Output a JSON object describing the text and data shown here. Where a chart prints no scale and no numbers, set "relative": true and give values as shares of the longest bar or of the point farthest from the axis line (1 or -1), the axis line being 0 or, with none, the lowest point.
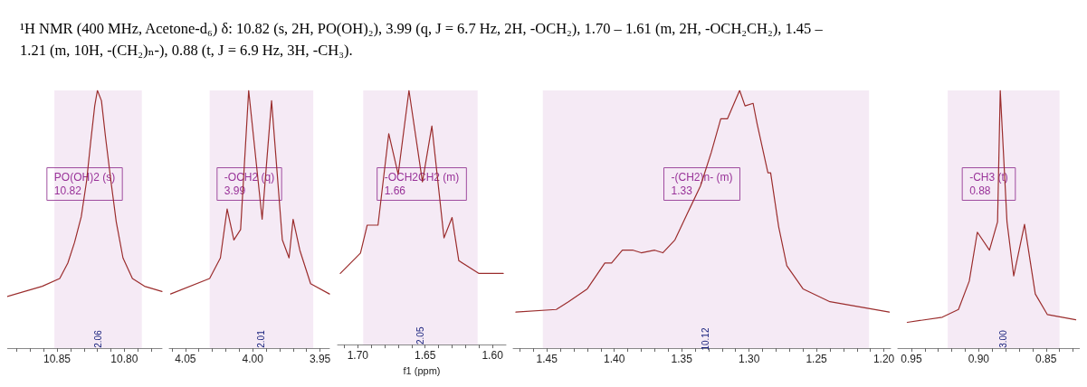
{
  "chart_data": [
    {
      "type": "line",
      "title": "¹H NMR (400 MHz, Acetone-d₆) δ: 10.82 (s, 2H, PO(OH)₂), 3.99 (q, J = 6.7 Hz, 2H, -OCH₂), 1.70 – 1.61 (m, 2H, -OCH₂CH₂), 1.45 – 1.21 (m, 10H, -(CH₂)ₙ-), 0.88 (t, J = 6.9 Hz, 3H, -CH₃).",
      "relative": true,
      "marker": "none",
      "color": "#9b2d2d",
      "xlim": [
        10.887,
        10.772
      ],
      "xticks": [
        {
          "value": 10.88,
          "label": null
        },
        {
          "value": 10.87,
          "label": null
        },
        {
          "value": 10.86,
          "label": null
        },
        10.85,
        {
          "value": 10.84,
          "label": null
        },
        {
          "value": 10.83,
          "label": null
        },
        {
          "value": 10.82,
          "label": null
        },
        {
          "value": 10.81,
          "label": null
        },
        {
          "value": 10.8,
          "label": "10.80"
        },
        {
          "value": 10.79,
          "label": null
        },
        {
          "value": 10.78,
          "label": null
        }
      ],
      "x": [
        10.887,
        10.861,
        10.848,
        10.842,
        10.837,
        10.832,
        10.828,
        10.825,
        10.822,
        10.82,
        10.817,
        10.814,
        10.81,
        10.806,
        10.801,
        10.794,
        10.785,
        10.772
      ],
      "values": [
        0.2,
        0.24,
        0.27,
        0.33,
        0.41,
        0.51,
        0.65,
        0.8,
        0.94,
        1,
        0.96,
        0.82,
        0.65,
        0.49,
        0.35,
        0.27,
        0.24,
        0.22
      ],
      "annotations": [
        "PO(OH)2 (s)\n10.82"
      ],
      "bands": [
        {
          "axis": "x",
          "from": 10.852,
          "to": 10.787,
          "label": "2.06",
          "color": "#993399"
        }
      ]
    },
    {
      "type": "line",
      "relative": true,
      "marker": "none",
      "color": "#9b2d2d",
      "xlim": [
        4.062,
        3.943
      ],
      "xticks": [
        {
          "value": 4.06,
          "label": null
        },
        4.05,
        {
          "value": 4.04,
          "label": null
        },
        {
          "value": 4.03,
          "label": null
        },
        {
          "value": 4.02,
          "label": null
        },
        {
          "value": 4.01,
          "label": null
        },
        {
          "value": 4,
          "label": "4.00"
        },
        {
          "value": 3.99,
          "label": null
        },
        {
          "value": 3.98,
          "label": null
        },
        {
          "value": 3.97,
          "label": null
        },
        {
          "value": 3.96,
          "label": null
        },
        3.95
      ],
      "x": [
        4.061,
        4.032,
        4.024,
        4.019,
        4.014,
        4.009,
        4.003,
        3.993,
        3.986,
        3.978,
        3.973,
        3.97,
        3.965,
        3.957,
        3.943
      ],
      "values": [
        0.21,
        0.27,
        0.35,
        0.54,
        0.42,
        0.46,
        1,
        0.5,
        0.96,
        0.42,
        0.35,
        0.5,
        0.38,
        0.25,
        0.21
      ],
      "annotations": [
        "-OCH2 (q)\n3.99"
      ],
      "bands": [
        {
          "axis": "x",
          "from": 4.032,
          "to": 3.955,
          "label": "2.01",
          "color": "#993399"
        }
      ]
    },
    {
      "type": "line",
      "relative": true,
      "marker": "none",
      "color": "#9b2d2d",
      "xlim": [
        1.715,
        1.59
      ],
      "xlabel": "f1 (ppm)",
      "xticks": [
        {
          "value": 1.71,
          "label": null
        },
        {
          "value": 1.7,
          "label": "1.70"
        },
        {
          "value": 1.69,
          "label": null
        },
        {
          "value": 1.68,
          "label": null
        },
        {
          "value": 1.67,
          "label": null
        },
        {
          "value": 1.66,
          "label": null
        },
        1.65,
        {
          "value": 1.64,
          "label": null
        },
        {
          "value": 1.63,
          "label": null
        },
        {
          "value": 1.62,
          "label": null
        },
        {
          "value": 1.61,
          "label": null
        },
        {
          "value": 1.6,
          "label": "1.60"
        }
      ],
      "x": [
        1.713,
        1.698,
        1.693,
        1.685,
        1.677,
        1.67,
        1.662,
        1.652,
        1.645,
        1.636,
        1.63,
        1.625,
        1.61,
        1.592
      ],
      "values": [
        0.28,
        0.36,
        0.47,
        0.47,
        0.83,
        0.67,
        1,
        0.64,
        0.86,
        0.42,
        0.5,
        0.33,
        0.28,
        0.28
      ],
      "annotations": [
        "-OCH2CH2 (m)\n1.66"
      ],
      "bands": [
        {
          "axis": "x",
          "from": 1.696,
          "to": 1.611,
          "label": "2.05",
          "color": "#993399"
        }
      ]
    },
    {
      "type": "line",
      "relative": true,
      "marker": "none",
      "color": "#9b2d2d",
      "xlim": [
        1.475,
        1.195
      ],
      "xticks": [
        {
          "value": 1.47,
          "label": null
        },
        {
          "value": 1.46,
          "label": null
        },
        1.45,
        {
          "value": 1.44,
          "label": null
        },
        {
          "value": 1.43,
          "label": null
        },
        {
          "value": 1.42,
          "label": null
        },
        {
          "value": 1.41,
          "label": null
        },
        {
          "value": 1.4,
          "label": "1.40"
        },
        {
          "value": 1.39,
          "label": null
        },
        {
          "value": 1.38,
          "label": null
        },
        {
          "value": 1.37,
          "label": null
        },
        {
          "value": 1.36,
          "label": null
        },
        1.35,
        {
          "value": 1.34,
          "label": null
        },
        {
          "value": 1.33,
          "label": null
        },
        {
          "value": 1.32,
          "label": null
        },
        {
          "value": 1.31,
          "label": null
        },
        {
          "value": 1.3,
          "label": "1.30"
        },
        {
          "value": 1.29,
          "label": null
        },
        {
          "value": 1.28,
          "label": null
        },
        {
          "value": 1.27,
          "label": null
        },
        {
          "value": 1.26,
          "label": null
        },
        1.25,
        {
          "value": 1.24,
          "label": null
        },
        {
          "value": 1.23,
          "label": null
        },
        {
          "value": 1.22,
          "label": null
        },
        {
          "value": 1.21,
          "label": null
        },
        {
          "value": 1.2,
          "label": "1.20"
        }
      ],
      "x": [
        1.473,
        1.443,
        1.434,
        1.42,
        1.407,
        1.402,
        1.394,
        1.386,
        1.38,
        1.37,
        1.364,
        1.355,
        1.346,
        1.336,
        1.328,
        1.321,
        1.316,
        1.307,
        1.303,
        1.297,
        1.294,
        1.286,
        1.284,
        1.278,
        1.272,
        1.26,
        1.24,
        1.196
      ],
      "values": [
        0.14,
        0.15,
        0.18,
        0.23,
        0.33,
        0.33,
        0.38,
        0.38,
        0.37,
        0.38,
        0.37,
        0.42,
        0.52,
        0.63,
        0.76,
        0.89,
        0.89,
        1,
        0.94,
        0.95,
        0.87,
        0.68,
        0.68,
        0.47,
        0.32,
        0.23,
        0.18,
        0.14
      ],
      "annotations": [
        "-(CH2)n- (m)\n1.33"
      ],
      "bands": [
        {
          "axis": "x",
          "from": 1.453,
          "to": 1.211,
          "label": "10.12",
          "color": "#993399"
        }
      ]
    },
    {
      "type": "line",
      "relative": true,
      "marker": "none",
      "color": "#9b2d2d",
      "xlim": [
        0.96,
        0.825
      ],
      "xticks": [
        0.95,
        {
          "value": 0.94,
          "label": null
        },
        {
          "value": 0.93,
          "label": null
        },
        {
          "value": 0.92,
          "label": null
        },
        {
          "value": 0.91,
          "label": null
        },
        {
          "value": 0.9,
          "label": "0.90"
        },
        {
          "value": 0.89,
          "label": null
        },
        {
          "value": 0.88,
          "label": null
        },
        {
          "value": 0.87,
          "label": null
        },
        {
          "value": 0.86,
          "label": null
        },
        0.85,
        {
          "value": 0.84,
          "label": null
        },
        {
          "value": 0.83,
          "label": null
        }
      ],
      "x": [
        0.953,
        0.927,
        0.915,
        0.907,
        0.901,
        0.892,
        0.886,
        0.884,
        0.879,
        0.874,
        0.866,
        0.858,
        0.849,
        0.828
      ],
      "values": [
        0.1,
        0.12,
        0.15,
        0.26,
        0.45,
        0.38,
        0.49,
        1,
        0.49,
        0.28,
        0.48,
        0.21,
        0.13,
        0.11
      ],
      "annotations": [
        "-CH3 (t)\n0.88"
      ],
      "bands": [
        {
          "axis": "x",
          "from": 0.923,
          "to": 0.84,
          "label": "3.00",
          "color": "#993399"
        }
      ]
    }
  ]
}
